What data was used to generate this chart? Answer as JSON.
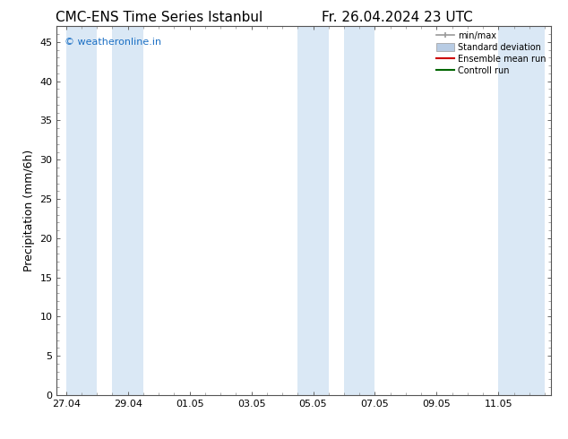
{
  "title_left": "CMC-ENS Time Series Istanbul",
  "title_right": "Fr. 26.04.2024 23 UTC",
  "ylabel": "Precipitation (mm/6h)",
  "watermark": "© weatheronline.in",
  "watermark_color": "#1a6fc4",
  "ylim": [
    0,
    47
  ],
  "yticks": [
    0,
    5,
    10,
    15,
    20,
    25,
    30,
    35,
    40,
    45
  ],
  "xtick_labels": [
    "27.04",
    "29.04",
    "01.05",
    "03.05",
    "05.05",
    "07.05",
    "09.05",
    "11.05"
  ],
  "x_ticks_pos": [
    0,
    2,
    4,
    6,
    8,
    10,
    12,
    14
  ],
  "xlim": [
    -0.3,
    15.7
  ],
  "background_color": "#ffffff",
  "plot_bg_color": "#ffffff",
  "shaded_band_color": "#dae8f5",
  "shaded_bands": [
    [
      0.0,
      1.0
    ],
    [
      1.5,
      2.5
    ],
    [
      7.5,
      8.5
    ],
    [
      9.0,
      10.0
    ],
    [
      14.0,
      15.5
    ]
  ],
  "legend_labels": [
    "min/max",
    "Standard deviation",
    "Ensemble mean run",
    "Controll run"
  ],
  "legend_colors": [
    "#999999",
    "#b8cce4",
    "#cc0000",
    "#006600"
  ],
  "title_fontsize": 11,
  "axis_label_fontsize": 9,
  "tick_fontsize": 8,
  "watermark_fontsize": 8
}
